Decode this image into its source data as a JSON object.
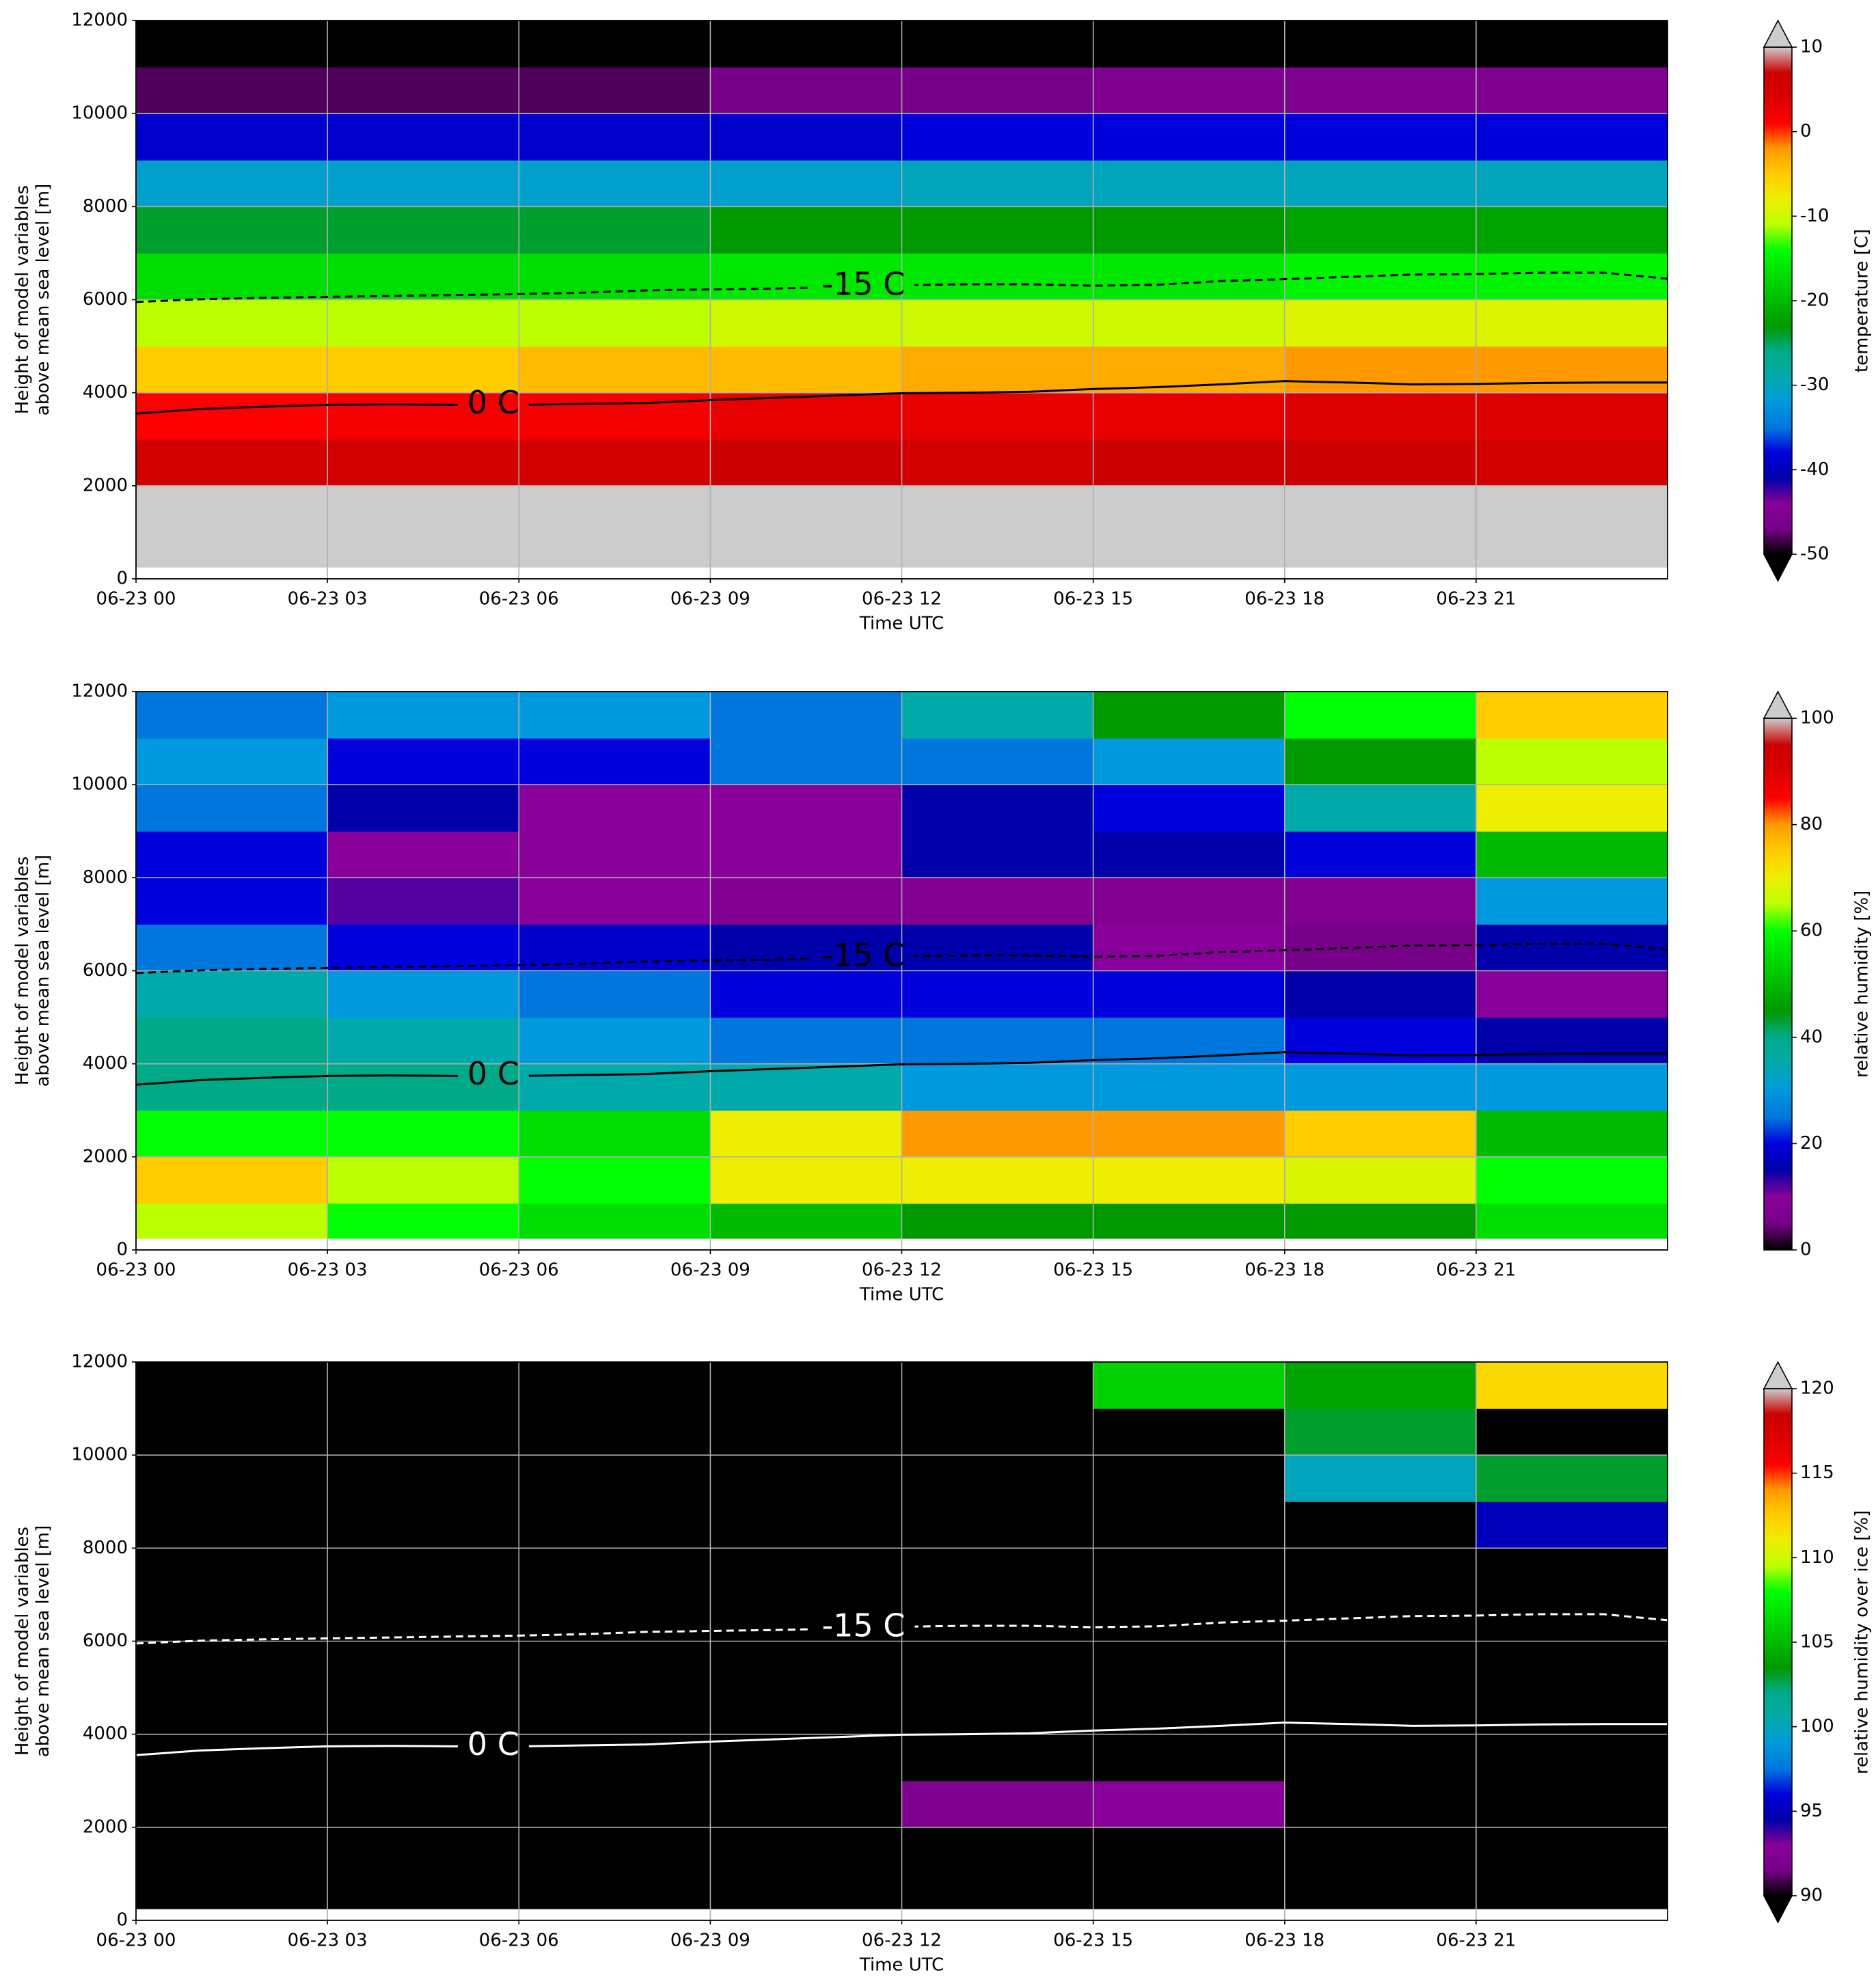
{
  "colormap": [
    "#000000",
    "#770088",
    "#880099",
    "#0000aa",
    "#0000dd",
    "#0077dd",
    "#0099dd",
    "#00aaaa",
    "#00aa88",
    "#009900",
    "#00bb00",
    "#00dd00",
    "#00ff00",
    "#bbff00",
    "#eeee00",
    "#ffcc00",
    "#ff9900",
    "#ff0000",
    "#dd0000",
    "#cc0000",
    "#cccccc"
  ],
  "over_color": "#cccccc",
  "under_color": "#000000",
  "chart_data": [
    {
      "type": "heatmap",
      "xlabel": "Time UTC",
      "ylabel": [
        "Height of model variables",
        "above mean sea level [m]"
      ],
      "colorbar_label": "temperature [C]",
      "clim": [
        -50,
        10
      ],
      "cticks": [
        -50,
        -40,
        -30,
        -20,
        -10,
        0,
        10
      ],
      "extend": "both",
      "xlim": [
        0,
        24
      ],
      "ylim": [
        0,
        12000
      ],
      "grid": true,
      "xticks": [
        {
          "value": 0,
          "label": "06-23 00"
        },
        {
          "value": 3,
          "label": "06-23 03"
        },
        {
          "value": 6,
          "label": "06-23 06"
        },
        {
          "value": 9,
          "label": "06-23 09"
        },
        {
          "value": 12,
          "label": "06-23 12"
        },
        {
          "value": 15,
          "label": "06-23 15"
        },
        {
          "value": 18,
          "label": "06-23 18"
        },
        {
          "value": 21,
          "label": "06-23 21"
        }
      ],
      "yticks": [
        0,
        2000,
        4000,
        6000,
        8000,
        10000,
        12000
      ],
      "x_edges": [
        0,
        3,
        6,
        9,
        12,
        15,
        18,
        21,
        24
      ],
      "y_edges": [
        250,
        1000,
        2000,
        3000,
        4000,
        5000,
        6000,
        7000,
        8000,
        9000,
        10000,
        11000,
        12000
      ],
      "values": [
        [
          15,
          15,
          15,
          15,
          15,
          15,
          15,
          15
        ],
        [
          12,
          12,
          12,
          12,
          12,
          12,
          12,
          12
        ],
        [
          6,
          6,
          6,
          7,
          6,
          7,
          7,
          6
        ],
        [
          1,
          2,
          2,
          3,
          3,
          3,
          4,
          4
        ],
        [
          -5,
          -5,
          -4,
          -4,
          -3,
          -3,
          -2,
          -2
        ],
        [
          -11,
          -11,
          -11,
          -10,
          -10,
          -10,
          -9,
          -9
        ],
        [
          -17,
          -17,
          -17,
          -16,
          -16,
          -16,
          -15,
          -15
        ],
        [
          -24,
          -24,
          -24,
          -23,
          -23,
          -23,
          -22,
          -22
        ],
        [
          -31,
          -31,
          -31,
          -31,
          -30,
          -30,
          -30,
          -30
        ],
        [
          -39,
          -39,
          -39,
          -39,
          -38,
          -38,
          -38,
          -38
        ],
        [
          -48,
          -48,
          -48,
          -47,
          -47,
          -46,
          -46,
          -46
        ],
        [
          -55,
          -55,
          -55,
          -55,
          -55,
          -55,
          -55,
          -55
        ]
      ],
      "series": [
        {
          "name": "0 C",
          "color": "#000000",
          "dashed": false,
          "x": [
            0,
            1,
            2,
            3,
            4,
            5,
            6,
            7,
            8,
            9,
            10,
            11,
            12,
            13,
            14,
            15,
            16,
            17,
            18,
            19,
            20,
            21,
            22,
            23,
            24
          ],
          "values": [
            3550,
            3650,
            3700,
            3740,
            3750,
            3740,
            3740,
            3760,
            3780,
            3840,
            3890,
            3940,
            3990,
            4000,
            4020,
            4080,
            4120,
            4180,
            4250,
            4220,
            4180,
            4190,
            4210,
            4220,
            4220
          ]
        },
        {
          "name": "-15 C",
          "color": "#000000",
          "dashed": true,
          "x": [
            0,
            1,
            2,
            3,
            4,
            5,
            6,
            7,
            8,
            9,
            10,
            11,
            12,
            13,
            14,
            15,
            16,
            17,
            18,
            19,
            20,
            21,
            22,
            23,
            24
          ],
          "values": [
            5950,
            6010,
            6040,
            6060,
            6080,
            6100,
            6120,
            6150,
            6200,
            6220,
            6240,
            6270,
            6310,
            6330,
            6330,
            6300,
            6320,
            6400,
            6440,
            6490,
            6540,
            6550,
            6580,
            6580,
            6450
          ]
        }
      ]
    },
    {
      "type": "heatmap",
      "xlabel": "Time UTC",
      "ylabel": [
        "Height of model variables",
        "above mean sea level [m]"
      ],
      "colorbar_label": "relative humidity [%]",
      "clim": [
        0,
        100
      ],
      "cticks": [
        0,
        20,
        40,
        60,
        80,
        100
      ],
      "extend": "max",
      "xlim": [
        0,
        24
      ],
      "ylim": [
        0,
        12000
      ],
      "grid": true,
      "xticks": [
        {
          "value": 0,
          "label": "06-23 00"
        },
        {
          "value": 3,
          "label": "06-23 03"
        },
        {
          "value": 6,
          "label": "06-23 06"
        },
        {
          "value": 9,
          "label": "06-23 09"
        },
        {
          "value": 12,
          "label": "06-23 12"
        },
        {
          "value": 15,
          "label": "06-23 15"
        },
        {
          "value": 18,
          "label": "06-23 18"
        },
        {
          "value": 21,
          "label": "06-23 21"
        }
      ],
      "yticks": [
        0,
        2000,
        4000,
        6000,
        8000,
        10000,
        12000
      ],
      "x_edges": [
        0,
        3,
        6,
        9,
        12,
        15,
        18,
        21,
        24
      ],
      "y_edges": [
        250,
        1000,
        2000,
        3000,
        4000,
        5000,
        6000,
        7000,
        8000,
        9000,
        10000,
        11000,
        12000
      ],
      "values": [
        [
          65,
          60,
          55,
          50,
          45,
          45,
          45,
          55
        ],
        [
          75,
          65,
          60,
          70,
          70,
          70,
          68,
          60
        ],
        [
          60,
          60,
          55,
          70,
          80,
          80,
          75,
          50
        ],
        [
          40,
          40,
          35,
          35,
          30,
          30,
          30,
          30
        ],
        [
          40,
          35,
          30,
          25,
          25,
          25,
          20,
          15
        ],
        [
          35,
          30,
          25,
          20,
          20,
          20,
          15,
          10
        ],
        [
          25,
          20,
          18,
          15,
          15,
          10,
          5,
          15
        ],
        [
          20,
          12,
          10,
          8,
          8,
          8,
          8,
          30
        ],
        [
          20,
          10,
          10,
          10,
          15,
          15,
          20,
          50
        ],
        [
          25,
          15,
          10,
          10,
          15,
          20,
          35,
          70
        ],
        [
          30,
          20,
          20,
          25,
          25,
          30,
          45,
          65
        ],
        [
          25,
          30,
          30,
          25,
          35,
          45,
          60,
          75
        ]
      ],
      "series": [
        {
          "name": "0 C",
          "color": "#000000",
          "dashed": false,
          "x": [
            0,
            1,
            2,
            3,
            4,
            5,
            6,
            7,
            8,
            9,
            10,
            11,
            12,
            13,
            14,
            15,
            16,
            17,
            18,
            19,
            20,
            21,
            22,
            23,
            24
          ],
          "values": [
            3550,
            3650,
            3700,
            3740,
            3750,
            3740,
            3740,
            3760,
            3780,
            3840,
            3890,
            3940,
            3990,
            4000,
            4020,
            4080,
            4120,
            4180,
            4250,
            4220,
            4180,
            4190,
            4210,
            4220,
            4220
          ]
        },
        {
          "name": "-15 C",
          "color": "#000000",
          "dashed": true,
          "x": [
            0,
            1,
            2,
            3,
            4,
            5,
            6,
            7,
            8,
            9,
            10,
            11,
            12,
            13,
            14,
            15,
            16,
            17,
            18,
            19,
            20,
            21,
            22,
            23,
            24
          ],
          "values": [
            5950,
            6010,
            6040,
            6060,
            6080,
            6100,
            6120,
            6150,
            6200,
            6220,
            6240,
            6270,
            6310,
            6330,
            6330,
            6300,
            6320,
            6400,
            6440,
            6490,
            6540,
            6550,
            6580,
            6580,
            6450
          ]
        }
      ]
    },
    {
      "type": "heatmap",
      "xlabel": "Time UTC",
      "ylabel": [
        "Height of model variables",
        "above mean sea level [m]"
      ],
      "colorbar_label": "relative humidity over ice [%]",
      "clim": [
        90,
        120
      ],
      "cticks": [
        90,
        95,
        100,
        105,
        110,
        115,
        120
      ],
      "extend": "both",
      "xlim": [
        0,
        24
      ],
      "ylim": [
        0,
        12000
      ],
      "grid": true,
      "xticks": [
        {
          "value": 0,
          "label": "06-23 00"
        },
        {
          "value": 3,
          "label": "06-23 03"
        },
        {
          "value": 6,
          "label": "06-23 06"
        },
        {
          "value": 9,
          "label": "06-23 09"
        },
        {
          "value": 12,
          "label": "06-23 12"
        },
        {
          "value": 15,
          "label": "06-23 15"
        },
        {
          "value": 18,
          "label": "06-23 18"
        },
        {
          "value": 21,
          "label": "06-23 21"
        }
      ],
      "yticks": [
        0,
        2000,
        4000,
        6000,
        8000,
        10000,
        12000
      ],
      "x_edges": [
        0,
        3,
        6,
        9,
        12,
        15,
        18,
        21,
        24
      ],
      "y_edges": [
        250,
        1000,
        2000,
        3000,
        4000,
        5000,
        6000,
        7000,
        8000,
        9000,
        10000,
        11000,
        12000
      ],
      "values": [
        [
          60,
          60,
          60,
          60,
          60,
          60,
          60,
          60
        ],
        [
          60,
          60,
          60,
          60,
          60,
          60,
          60,
          60
        ],
        [
          60,
          60,
          60,
          60,
          92,
          93,
          60,
          60
        ],
        [
          60,
          60,
          60,
          60,
          60,
          60,
          60,
          60
        ],
        [
          60,
          60,
          60,
          60,
          60,
          60,
          60,
          60
        ],
        [
          60,
          60,
          60,
          60,
          60,
          60,
          60,
          60
        ],
        [
          60,
          60,
          60,
          60,
          60,
          60,
          60,
          60
        ],
        [
          60,
          60,
          60,
          60,
          60,
          60,
          60,
          60
        ],
        [
          60,
          60,
          60,
          60,
          60,
          60,
          60,
          95
        ],
        [
          60,
          60,
          60,
          60,
          60,
          60,
          100,
          103
        ],
        [
          60,
          60,
          60,
          60,
          60,
          60,
          103,
          60
        ],
        [
          60,
          60,
          60,
          60,
          60,
          106,
          104,
          112
        ]
      ],
      "series": [
        {
          "name": "0 C",
          "color": "#ffffff",
          "dashed": false,
          "x": [
            0,
            1,
            2,
            3,
            4,
            5,
            6,
            7,
            8,
            9,
            10,
            11,
            12,
            13,
            14,
            15,
            16,
            17,
            18,
            19,
            20,
            21,
            22,
            23,
            24
          ],
          "values": [
            3550,
            3650,
            3700,
            3740,
            3750,
            3740,
            3740,
            3760,
            3780,
            3840,
            3890,
            3940,
            3990,
            4000,
            4020,
            4080,
            4120,
            4180,
            4250,
            4220,
            4180,
            4190,
            4210,
            4220,
            4220
          ]
        },
        {
          "name": "-15 C",
          "color": "#ffffff",
          "dashed": true,
          "x": [
            0,
            1,
            2,
            3,
            4,
            5,
            6,
            7,
            8,
            9,
            10,
            11,
            12,
            13,
            14,
            15,
            16,
            17,
            18,
            19,
            20,
            21,
            22,
            23,
            24
          ],
          "values": [
            5950,
            6010,
            6040,
            6060,
            6080,
            6100,
            6120,
            6150,
            6200,
            6220,
            6240,
            6270,
            6310,
            6330,
            6330,
            6300,
            6320,
            6400,
            6440,
            6490,
            6540,
            6550,
            6580,
            6580,
            6450
          ]
        }
      ]
    }
  ]
}
